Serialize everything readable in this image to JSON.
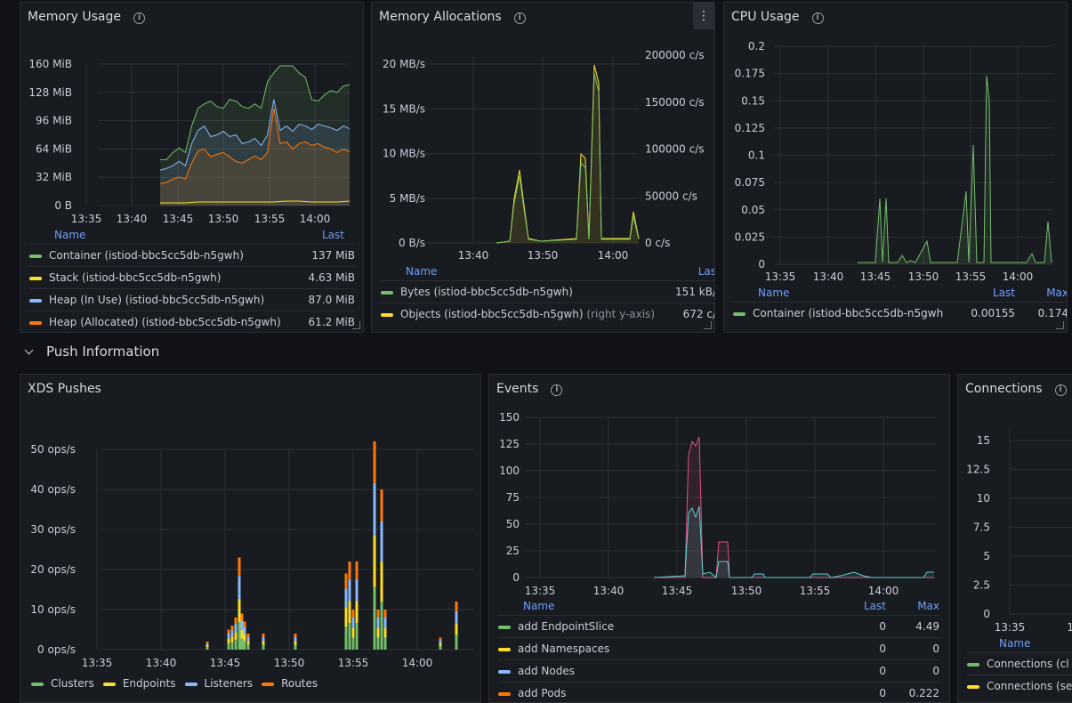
{
  "memory_usage": {
    "title": "Memory Usage",
    "y_ticks": [
      "160 MiB",
      "128 MiB",
      "96 MiB",
      "64 MiB",
      "32 MiB",
      "0 B"
    ],
    "x_ticks": [
      "13:35",
      "13:40",
      "13:45",
      "13:50",
      "13:55",
      "14:00"
    ],
    "legend_header": {
      "name": "Name",
      "last": "Last"
    },
    "legend": [
      {
        "name": "Container (istiod-bbc5cc5db-n5gwh)",
        "last": "137 MiB",
        "color": "#73bf69"
      },
      {
        "name": "Stack (istiod-bbc5cc5db-n5gwh)",
        "last": "4.63 MiB",
        "color": "#fade2a"
      },
      {
        "name": "Heap (In Use) (istiod-bbc5cc5db-n5gwh)",
        "last": "87.0 MiB",
        "color": "#8ab8ff"
      },
      {
        "name": "Heap (Allocated) (istiod-bbc5cc5db-n5gwh)",
        "last": "61.2 MiB",
        "color": "#ff780a"
      }
    ]
  },
  "memory_alloc": {
    "title": "Memory Allocations",
    "y_ticks_left": [
      "20 MB/s",
      "15 MB/s",
      "10 MB/s",
      "5 MB/s",
      "0 B/s"
    ],
    "y_ticks_right": [
      "200000 c/s",
      "150000 c/s",
      "100000 c/s",
      "50000 c/s",
      "0 c/s"
    ],
    "x_ticks": [
      "13:40",
      "13:50",
      "14:00"
    ],
    "legend_header": {
      "name": "Name",
      "last": "Las"
    },
    "legend": [
      {
        "name": "Bytes (istiod-bbc5cc5db-n5gwh)",
        "hint": "",
        "last": "151 kB/",
        "color": "#73bf69"
      },
      {
        "name": "Objects (istiod-bbc5cc5db-n5gwh)",
        "hint": "(right y-axis)",
        "last": "672 c/",
        "color": "#fade2a"
      }
    ],
    "menu_icon": "kebab-icon"
  },
  "cpu_usage": {
    "title": "CPU Usage",
    "y_ticks": [
      "0.2",
      "0.175",
      "0.15",
      "0.125",
      "0.1",
      "0.075",
      "0.05",
      "0.025",
      "0"
    ],
    "x_ticks": [
      "13:35",
      "13:40",
      "13:45",
      "13:50",
      "13:55",
      "14:00"
    ],
    "legend_header": {
      "name": "Name",
      "last": "Last",
      "max": "Max"
    },
    "legend": [
      {
        "name": "Container (istiod-bbc5cc5db-n5gwh)",
        "last": "0.00155",
        "max": "0.174",
        "color": "#73bf69"
      }
    ]
  },
  "row": {
    "title": "Push Information"
  },
  "xds": {
    "title": "XDS Pushes",
    "y_ticks": [
      "50 ops/s",
      "40 ops/s",
      "30 ops/s",
      "20 ops/s",
      "10 ops/s",
      "0 ops/s"
    ],
    "x_ticks": [
      "13:35",
      "13:40",
      "13:45",
      "13:50",
      "13:55",
      "14:00"
    ],
    "legend": [
      {
        "name": "Clusters",
        "color": "#73bf69"
      },
      {
        "name": "Endpoints",
        "color": "#fade2a"
      },
      {
        "name": "Listeners",
        "color": "#8ab8ff"
      },
      {
        "name": "Routes",
        "color": "#ff780a"
      }
    ]
  },
  "events": {
    "title": "Events",
    "y_ticks": [
      "150",
      "125",
      "100",
      "75",
      "50",
      "25",
      "0"
    ],
    "x_ticks": [
      "13:35",
      "13:40",
      "13:45",
      "13:50",
      "13:55",
      "14:00"
    ],
    "legend_header": {
      "name": "Name",
      "last": "Last",
      "max": "Max"
    },
    "legend": [
      {
        "name": "add EndpointSlice",
        "last": "0",
        "max": "4.49",
        "color": "#73bf69"
      },
      {
        "name": "add Namespaces",
        "last": "0",
        "max": "0",
        "color": "#fade2a"
      },
      {
        "name": "add Nodes",
        "last": "0",
        "max": "0",
        "color": "#8ab8ff"
      },
      {
        "name": "add Pods",
        "last": "0",
        "max": "0.222",
        "color": "#ff780a"
      }
    ]
  },
  "connections": {
    "title": "Connections",
    "y_ticks": [
      "15",
      "12.5",
      "10",
      "7.5",
      "5",
      "2.5",
      "0"
    ],
    "x_ticks": [
      "13:35",
      "13"
    ],
    "legend_header": {
      "name": "Name"
    },
    "legend": [
      {
        "name": "Connections (cl",
        "color": "#73bf69"
      },
      {
        "name": "Connections (se",
        "color": "#fade2a"
      }
    ]
  }
}
